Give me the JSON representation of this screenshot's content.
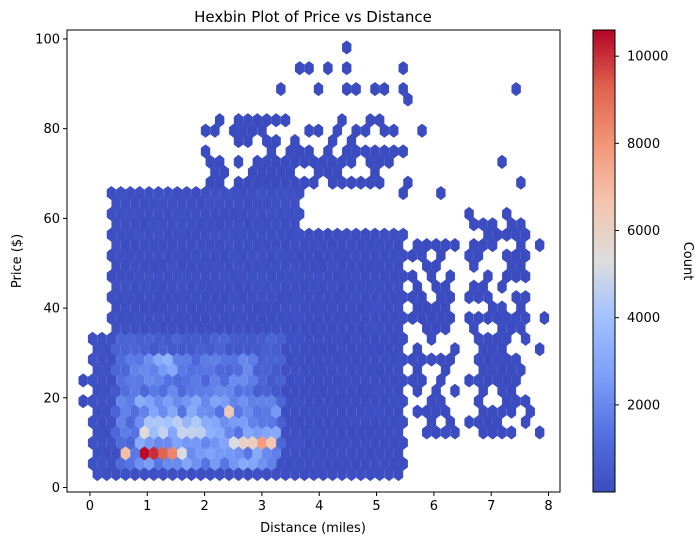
{
  "chart_data": {
    "type": "heatmap",
    "subtype": "hexbin",
    "title": "Hexbin Plot of Price vs Distance",
    "xlabel": "Distance (miles)",
    "ylabel": "Price ($)",
    "xlim": [
      -0.4,
      8.2
    ],
    "ylim": [
      -1.0,
      102.0
    ],
    "xticks": [
      0,
      1,
      2,
      3,
      4,
      5,
      6,
      7,
      8
    ],
    "yticks": [
      0,
      20,
      40,
      60,
      80,
      100
    ],
    "colorbar": {
      "label": "Count",
      "range": [
        1,
        10600
      ],
      "ticks": [
        2000,
        4000,
        6000,
        8000,
        10000
      ],
      "colormap": "coolwarm"
    },
    "hex_grid": {
      "dx": 0.1642,
      "dy": 2.32
    },
    "density_regions": [
      {
        "x": [
          0.0,
          0.45
        ],
        "y": [
          3,
          34
        ],
        "count": 150
      },
      {
        "x": [
          0.3,
          3.7
        ],
        "y": [
          3,
          66
        ],
        "count": 120
      },
      {
        "x": [
          0.4,
          3.4
        ],
        "y": [
          8,
          35
        ],
        "count": 700
      },
      {
        "x": [
          0.5,
          2.9
        ],
        "y": [
          4,
          30
        ],
        "count": 1500
      },
      {
        "x": [
          0.8,
          3.3
        ],
        "y": [
          5,
          20
        ],
        "count": 2300
      },
      {
        "x": [
          0.9,
          2.3
        ],
        "y": [
          10,
          16
        ],
        "count": 3500
      },
      {
        "x": [
          1.0,
          1.6
        ],
        "y": [
          26,
          30
        ],
        "count": 2600
      },
      {
        "x": [
          2.4,
          3.3
        ],
        "y": [
          8,
          12
        ],
        "count": 4800
      },
      {
        "x": [
          3.7,
          5.5
        ],
        "y": [
          3,
          57
        ],
        "count": 80
      },
      {
        "x": [
          2.0,
          5.2
        ],
        "y": [
          66,
          82
        ],
        "count": 5
      },
      {
        "x": [
          5.6,
          6.4
        ],
        "y": [
          10,
          56
        ],
        "count": 15
      },
      {
        "x": [
          6.6,
          7.6
        ],
        "y": [
          10,
          59
        ],
        "count": 20
      }
    ],
    "hot_spots": [
      {
        "x": 1.0,
        "y": 7.7,
        "count": 10500
      },
      {
        "x": 1.16,
        "y": 7.7,
        "count": 10000
      },
      {
        "x": 1.33,
        "y": 7.7,
        "count": 9200
      },
      {
        "x": 1.49,
        "y": 7.7,
        "count": 8400
      },
      {
        "x": 0.55,
        "y": 7.7,
        "count": 6800
      },
      {
        "x": 1.0,
        "y": 12.3,
        "count": 5500
      },
      {
        "x": 1.66,
        "y": 7.7,
        "count": 5200
      },
      {
        "x": 2.6,
        "y": 10.0,
        "count": 6000
      },
      {
        "x": 2.85,
        "y": 10.0,
        "count": 6200
      },
      {
        "x": 3.05,
        "y": 10.0,
        "count": 7800
      },
      {
        "x": 3.2,
        "y": 10.0,
        "count": 6500
      },
      {
        "x": 2.35,
        "y": 16.3,
        "count": 6400
      },
      {
        "x": 2.45,
        "y": 10.0,
        "count": 5200
      },
      {
        "x": 1.2,
        "y": 14.6,
        "count": 4200
      },
      {
        "x": 1.4,
        "y": 14.6,
        "count": 4000
      }
    ],
    "sparse_points": [
      [
        4.4,
        97.6
      ],
      [
        4.22,
        92.6
      ],
      [
        4.55,
        92.6
      ],
      [
        3.6,
        92.6
      ],
      [
        3.8,
        92.6
      ],
      [
        4.05,
        89.3
      ],
      [
        4.45,
        89.3
      ],
      [
        4.7,
        89.3
      ],
      [
        5.0,
        89.3
      ],
      [
        5.15,
        89.3
      ],
      [
        5.4,
        89.3
      ],
      [
        5.5,
        92.6
      ],
      [
        5.5,
        87.0
      ],
      [
        3.4,
        89.3
      ],
      [
        7.45,
        89.3
      ],
      [
        4.4,
        82.3
      ],
      [
        5.35,
        80.5
      ],
      [
        5.8,
        80.5
      ],
      [
        7.25,
        73.6
      ],
      [
        7.45,
        68.9
      ],
      [
        5.6,
        68.9
      ],
      [
        6.05,
        65.3
      ],
      [
        6.6,
        62.0
      ],
      [
        7.3,
        62.0
      ],
      [
        0.55,
        62.0
      ],
      [
        1.35,
        65.3
      ],
      [
        5.5,
        66.2
      ],
      [
        5.2,
        73.6
      ],
      [
        5.3,
        75.8
      ],
      [
        5.5,
        75.8
      ],
      [
        7.85,
        53.5
      ],
      [
        7.85,
        36.7
      ],
      [
        7.85,
        29.7
      ],
      [
        7.85,
        12.6
      ],
      [
        7.75,
        17.7
      ],
      [
        -0.15,
        22.9
      ],
      [
        -0.15,
        19.3
      ],
      [
        1.4,
        21.2
      ],
      [
        1.8,
        21.2
      ],
      [
        1.05,
        20.4
      ],
      [
        2.4,
        24.0
      ],
      [
        2.05,
        40.4
      ],
      [
        1.1,
        40.4
      ],
      [
        1.15,
        36.7
      ],
      [
        4.8,
        18.1
      ]
    ]
  }
}
